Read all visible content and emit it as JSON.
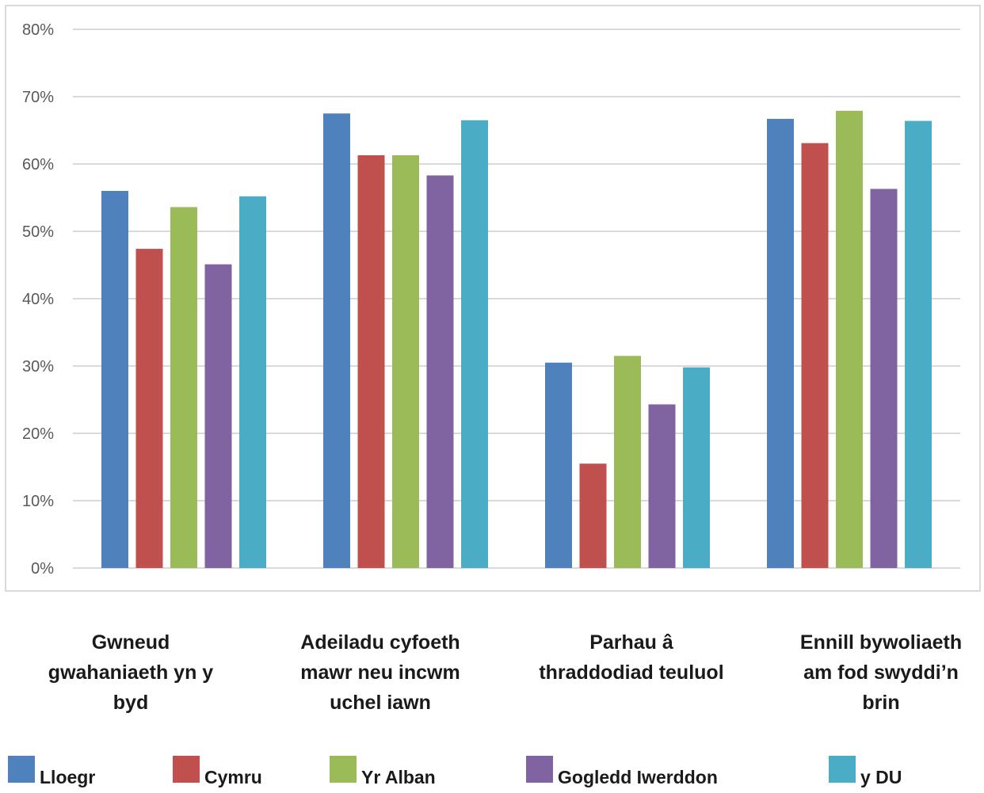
{
  "chart_data": {
    "type": "bar",
    "categories": [
      "Gwneud gwahaniaeth yn y byd",
      "Adeiladu cyfoeth mawr neu incwm uchel iawn",
      "Parhau â thraddodiad teuluol",
      "Ennill bywoliaeth am fod swyddi’n brin"
    ],
    "category_lines": [
      [
        "Gwneud",
        "gwahaniaeth yn y",
        "byd"
      ],
      [
        "Adeiladu cyfoeth",
        "mawr neu incwm",
        "uchel iawn"
      ],
      [
        "Parhau â",
        "thraddodiad teuluol"
      ],
      [
        "Ennill bywoliaeth",
        "am fod swyddi’n",
        "brin"
      ]
    ],
    "series": [
      {
        "name": "Lloegr",
        "color": "#4f81bd",
        "values": [
          56.0,
          67.5,
          30.5,
          66.7
        ]
      },
      {
        "name": "Cymru",
        "color": "#c0504d",
        "values": [
          47.4,
          61.3,
          15.5,
          63.1
        ]
      },
      {
        "name": "Yr Alban",
        "color": "#9bbb59",
        "values": [
          53.6,
          61.3,
          31.5,
          67.9
        ]
      },
      {
        "name": "Gogledd Iwerddon",
        "color": "#8064a2",
        "values": [
          45.1,
          58.3,
          24.3,
          56.3
        ]
      },
      {
        "name": "y DU",
        "color": "#4bacc6",
        "values": [
          55.2,
          66.5,
          29.8,
          66.4
        ]
      }
    ],
    "ylim": [
      0,
      80
    ],
    "yticks": [
      "0%",
      "10%",
      "20%",
      "30%",
      "40%",
      "50%",
      "60%",
      "70%",
      "80%"
    ],
    "ytick_values": [
      0,
      10,
      20,
      30,
      40,
      50,
      60,
      70,
      80
    ],
    "grid": true,
    "legend_position": "bottom"
  }
}
